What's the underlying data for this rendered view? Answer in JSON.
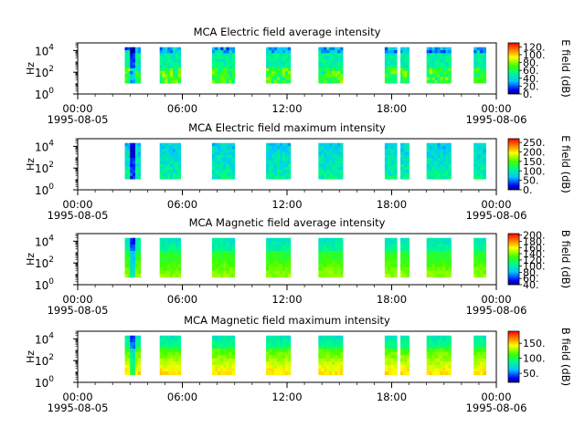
{
  "chart_data": [
    {
      "type": "heatmap",
      "title": "MCA  Electric field average intensity",
      "ylabel": "Hz",
      "yscale": "log",
      "ylim": [
        1,
        50000
      ],
      "y_ticks": [
        {
          "b": "10",
          "e": "0"
        },
        {
          "b": "10",
          "e": "2"
        },
        {
          "b": "10",
          "e": "4"
        }
      ],
      "x_ticks": [
        "00:00",
        "06:00",
        "12:00",
        "18:00",
        "00:00"
      ],
      "x_tick_dates": [
        "1995-08-05",
        "1995-08-06"
      ],
      "xlim_hours": [
        0,
        24
      ],
      "colorbar": {
        "label": "E field (dB)",
        "ticks": [
          "0.",
          "20.",
          "40.",
          "60.",
          "80.",
          "100.",
          "120."
        ],
        "min": 0,
        "max": 130
      },
      "segments": [
        {
          "start": 2.7,
          "end": 3.6,
          "fmin": 10,
          "fmax": 20000
        },
        {
          "start": 4.7,
          "end": 5.9,
          "fmin": 10,
          "fmax": 20000
        },
        {
          "start": 7.7,
          "end": 9.0,
          "fmin": 10,
          "fmax": 20000
        },
        {
          "start": 10.8,
          "end": 12.2,
          "fmin": 10,
          "fmax": 20000
        },
        {
          "start": 13.8,
          "end": 15.2,
          "fmin": 10,
          "fmax": 20000
        },
        {
          "start": 17.6,
          "end": 18.3,
          "fmin": 10,
          "fmax": 20000
        },
        {
          "start": 18.5,
          "end": 19.0,
          "fmin": 10,
          "fmax": 20000
        },
        {
          "start": 20.0,
          "end": 21.4,
          "fmin": 10,
          "fmax": 20000
        },
        {
          "start": 22.7,
          "end": 23.4,
          "fmin": 10,
          "fmax": 20000
        }
      ]
    },
    {
      "type": "heatmap",
      "title": "MCA  Electric field maximum intensity",
      "ylabel": "Hz",
      "yscale": "log",
      "ylim": [
        1,
        50000
      ],
      "y_ticks": [
        {
          "b": "10",
          "e": "0"
        },
        {
          "b": "10",
          "e": "2"
        },
        {
          "b": "10",
          "e": "4"
        }
      ],
      "x_ticks": [
        "00:00",
        "06:00",
        "12:00",
        "18:00",
        "00:00"
      ],
      "x_tick_dates": [
        "1995-08-05",
        "1995-08-06"
      ],
      "xlim_hours": [
        0,
        24
      ],
      "colorbar": {
        "label": "E field (dB)",
        "ticks": [
          "0.",
          "50.",
          "100.",
          "150.",
          "200.",
          "250."
        ],
        "min": 0,
        "max": 270
      },
      "segments": [
        {
          "start": 2.7,
          "end": 3.6,
          "fmin": 10,
          "fmax": 20000
        },
        {
          "start": 4.7,
          "end": 5.9,
          "fmin": 10,
          "fmax": 20000
        },
        {
          "start": 7.7,
          "end": 9.0,
          "fmin": 10,
          "fmax": 20000
        },
        {
          "start": 10.8,
          "end": 12.2,
          "fmin": 10,
          "fmax": 20000
        },
        {
          "start": 13.8,
          "end": 15.2,
          "fmin": 10,
          "fmax": 20000
        },
        {
          "start": 17.6,
          "end": 18.3,
          "fmin": 10,
          "fmax": 20000
        },
        {
          "start": 18.5,
          "end": 19.0,
          "fmin": 10,
          "fmax": 20000
        },
        {
          "start": 20.0,
          "end": 21.4,
          "fmin": 10,
          "fmax": 20000
        },
        {
          "start": 22.7,
          "end": 23.4,
          "fmin": 10,
          "fmax": 20000
        }
      ]
    },
    {
      "type": "heatmap",
      "title": "MCA  Magnetic field average intensity",
      "ylabel": "Hz",
      "yscale": "log",
      "ylim": [
        1,
        50000
      ],
      "y_ticks": [
        {
          "b": "10",
          "e": "0"
        },
        {
          "b": "10",
          "e": "2"
        },
        {
          "b": "10",
          "e": "4"
        }
      ],
      "x_ticks": [
        "00:00",
        "06:00",
        "12:00",
        "18:00",
        "00:00"
      ],
      "x_tick_dates": [
        "1995-08-05",
        "1995-08-06"
      ],
      "xlim_hours": [
        0,
        24
      ],
      "colorbar": {
        "label": "B field (dB)",
        "ticks": [
          "40.",
          "60.",
          "80.",
          "100.",
          "120.",
          "140.",
          "160.",
          "180.",
          "200."
        ],
        "min": 40,
        "max": 205
      },
      "segments": [
        {
          "start": 2.7,
          "end": 3.6,
          "fmin": 5,
          "fmax": 20000
        },
        {
          "start": 4.7,
          "end": 5.9,
          "fmin": 5,
          "fmax": 20000
        },
        {
          "start": 7.7,
          "end": 9.0,
          "fmin": 5,
          "fmax": 20000
        },
        {
          "start": 10.8,
          "end": 12.2,
          "fmin": 5,
          "fmax": 20000
        },
        {
          "start": 13.8,
          "end": 15.2,
          "fmin": 5,
          "fmax": 20000
        },
        {
          "start": 17.6,
          "end": 18.3,
          "fmin": 5,
          "fmax": 20000
        },
        {
          "start": 18.5,
          "end": 19.0,
          "fmin": 5,
          "fmax": 20000
        },
        {
          "start": 20.0,
          "end": 21.4,
          "fmin": 5,
          "fmax": 20000
        },
        {
          "start": 22.7,
          "end": 23.4,
          "fmin": 5,
          "fmax": 20000
        }
      ]
    },
    {
      "type": "heatmap",
      "title": "MCA  Magnetic field maximum intensity",
      "ylabel": "Hz",
      "yscale": "log",
      "ylim": [
        1,
        50000
      ],
      "y_ticks": [
        {
          "b": "10",
          "e": "0"
        },
        {
          "b": "10",
          "e": "2"
        },
        {
          "b": "10",
          "e": "4"
        }
      ],
      "x_ticks": [
        "00:00",
        "06:00",
        "12:00",
        "18:00",
        "00:00"
      ],
      "x_tick_dates": [
        "1995-08-05",
        "1995-08-06"
      ],
      "xlim_hours": [
        0,
        24
      ],
      "colorbar": {
        "label": "B field (dB)",
        "ticks": [
          "50.",
          "100.",
          "150."
        ],
        "min": 20,
        "max": 190
      },
      "segments": [
        {
          "start": 2.7,
          "end": 3.6,
          "fmin": 5,
          "fmax": 20000
        },
        {
          "start": 4.7,
          "end": 5.9,
          "fmin": 5,
          "fmax": 20000
        },
        {
          "start": 7.7,
          "end": 9.0,
          "fmin": 5,
          "fmax": 20000
        },
        {
          "start": 10.8,
          "end": 12.2,
          "fmin": 5,
          "fmax": 20000
        },
        {
          "start": 13.8,
          "end": 15.2,
          "fmin": 5,
          "fmax": 20000
        },
        {
          "start": 17.6,
          "end": 18.3,
          "fmin": 5,
          "fmax": 20000
        },
        {
          "start": 18.5,
          "end": 19.0,
          "fmin": 5,
          "fmax": 20000
        },
        {
          "start": 20.0,
          "end": 21.4,
          "fmin": 5,
          "fmax": 20000
        },
        {
          "start": 22.7,
          "end": 23.4,
          "fmin": 5,
          "fmax": 20000
        }
      ]
    }
  ]
}
